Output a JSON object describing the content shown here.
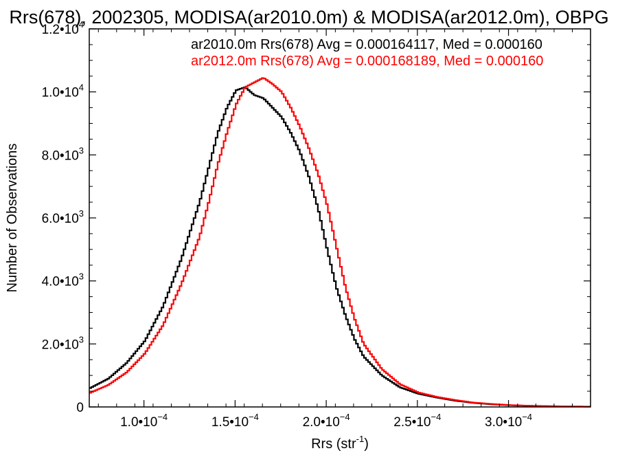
{
  "chart_data": {
    "type": "line",
    "title": "Rrs(678), 2002305, MODISA(ar2010.0m) & MODISA(ar2012.0m), OBPG",
    "xlabel": "Rrs (str",
    "xlabel_sup": "-1",
    "xlabel_close": ")",
    "ylabel": "Number of Observations",
    "xlim": [
      7e-05,
      0.000345
    ],
    "ylim": [
      0,
      12000
    ],
    "grid": false,
    "legend_placement": "top-right",
    "x_ticks": [
      {
        "value": 0.0001,
        "mantissa": "1.0",
        "sep": "•",
        "base": "10",
        "exp": "−4"
      },
      {
        "value": 0.00015,
        "mantissa": "1.5",
        "sep": "•",
        "base": "10",
        "exp": "−4"
      },
      {
        "value": 0.0002,
        "mantissa": "2.0",
        "sep": "•",
        "base": "10",
        "exp": "−4"
      },
      {
        "value": 0.00025,
        "mantissa": "2.5",
        "sep": "•",
        "base": "10",
        "exp": "−4"
      },
      {
        "value": 0.0003,
        "mantissa": "3.0",
        "sep": "•",
        "base": "10",
        "exp": "−4"
      }
    ],
    "y_ticks": [
      {
        "value": 0,
        "mantissa": "0",
        "sep": "",
        "base": "",
        "exp": ""
      },
      {
        "value": 2000,
        "mantissa": "2.0",
        "sep": "•",
        "base": "10",
        "exp": "3"
      },
      {
        "value": 4000,
        "mantissa": "4.0",
        "sep": "•",
        "base": "10",
        "exp": "3"
      },
      {
        "value": 6000,
        "mantissa": "6.0",
        "sep": "•",
        "base": "10",
        "exp": "3"
      },
      {
        "value": 8000,
        "mantissa": "8.0",
        "sep": "•",
        "base": "10",
        "exp": "3"
      },
      {
        "value": 10000,
        "mantissa": "1.0",
        "sep": "•",
        "base": "10",
        "exp": "4"
      },
      {
        "value": 12000,
        "mantissa": "1.2",
        "sep": "•",
        "base": "10",
        "exp": "4"
      }
    ],
    "series": [
      {
        "name": "ar2010.0m Rrs(678) Avg = 0.000164117, Med = 0.000160",
        "color": "#000000",
        "x": [
          7e-05,
          8e-05,
          9e-05,
          0.0001,
          0.00011,
          0.00012,
          0.00013,
          0.000135,
          0.00014,
          0.000145,
          0.00015,
          0.000155,
          0.00016,
          0.000165,
          0.00017,
          0.000175,
          0.00018,
          0.000185,
          0.00019,
          0.000195,
          0.0002,
          0.000205,
          0.00021,
          0.000215,
          0.00022,
          0.00023,
          0.00024,
          0.00025,
          0.00026,
          0.00027,
          0.00028,
          0.00029,
          0.0003,
          0.00031,
          0.00032,
          0.00033,
          0.000345
        ],
        "y": [
          600,
          900,
          1400,
          2100,
          3200,
          4700,
          6500,
          7600,
          8700,
          9500,
          10050,
          10150,
          9900,
          9800,
          9500,
          9200,
          8700,
          8100,
          7300,
          6300,
          5000,
          3800,
          2900,
          2150,
          1600,
          1000,
          620,
          420,
          300,
          200,
          130,
          85,
          55,
          35,
          25,
          15,
          8
        ]
      },
      {
        "name": "ar2012.0m Rrs(678) Avg = 0.000168189, Med = 0.000160",
        "color": "#ff0000",
        "x": [
          7e-05,
          8e-05,
          9e-05,
          0.0001,
          0.00011,
          0.00012,
          0.00013,
          0.000135,
          0.00014,
          0.000145,
          0.00015,
          0.000155,
          0.00016,
          0.000165,
          0.00017,
          0.000175,
          0.00018,
          0.000185,
          0.00019,
          0.000195,
          0.0002,
          0.000205,
          0.00021,
          0.000215,
          0.00022,
          0.00023,
          0.00024,
          0.00025,
          0.00026,
          0.00027,
          0.00028,
          0.00029,
          0.0003,
          0.00031,
          0.00032,
          0.00033,
          0.000345
        ],
        "y": [
          450,
          700,
          1100,
          1700,
          2600,
          3900,
          5400,
          6500,
          7700,
          8700,
          9600,
          10150,
          10300,
          10450,
          10250,
          10000,
          9500,
          8900,
          8200,
          7400,
          6400,
          5100,
          3800,
          2800,
          2000,
          1200,
          720,
          460,
          320,
          220,
          140,
          95,
          60,
          40,
          28,
          18,
          10
        ]
      }
    ]
  }
}
